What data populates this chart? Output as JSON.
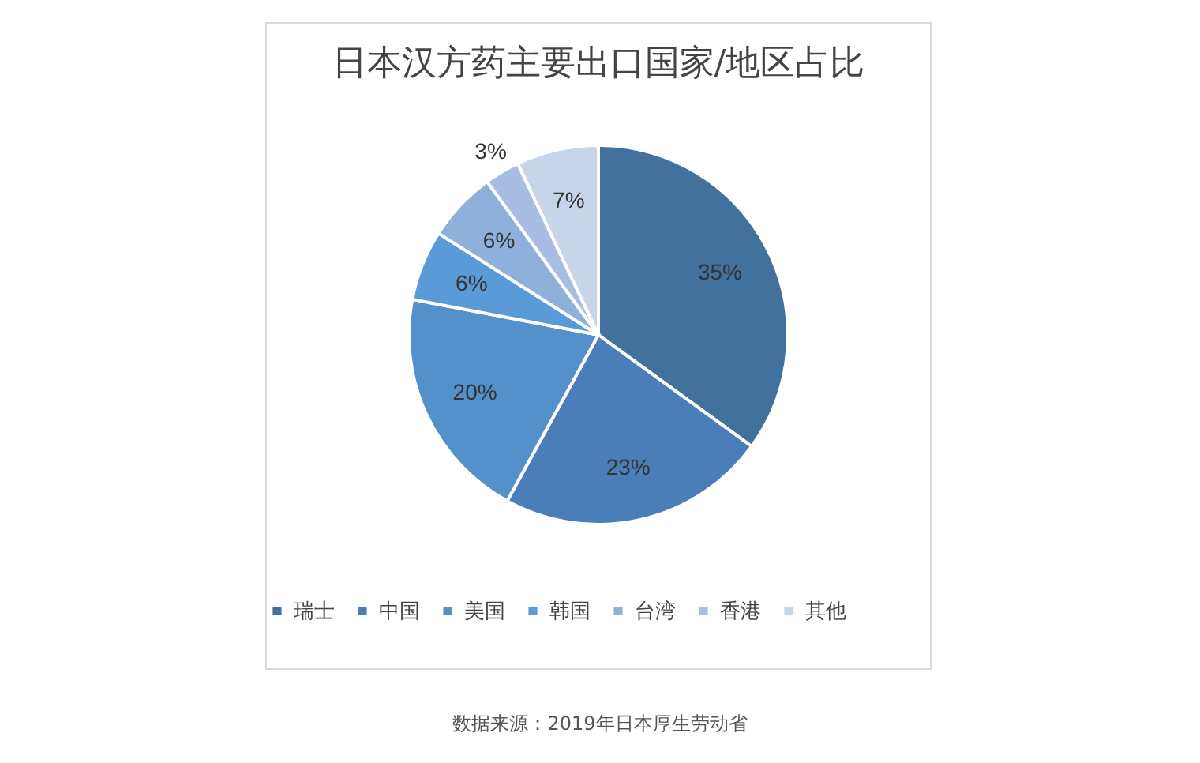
{
  "chart_data": {
    "type": "pie",
    "title": "日本汉方药主要出口国家/地区占比",
    "categories": [
      "瑞士",
      "中国",
      "美国",
      "韩国",
      "台湾",
      "香港",
      "其他"
    ],
    "values": [
      35,
      23,
      20,
      6,
      6,
      3,
      7
    ],
    "colors": [
      "#41719c",
      "#4a7eb8",
      "#5490c9",
      "#5a9ad6",
      "#8fb0db",
      "#a8bde2",
      "#c8d4e9"
    ],
    "value_labels": [
      "35%",
      "23%",
      "20%",
      "6%",
      "6%",
      "3%",
      "7%"
    ],
    "legend": "bottom",
    "annotations": [
      "数据来源：2019年日本厚生劳动省"
    ]
  }
}
